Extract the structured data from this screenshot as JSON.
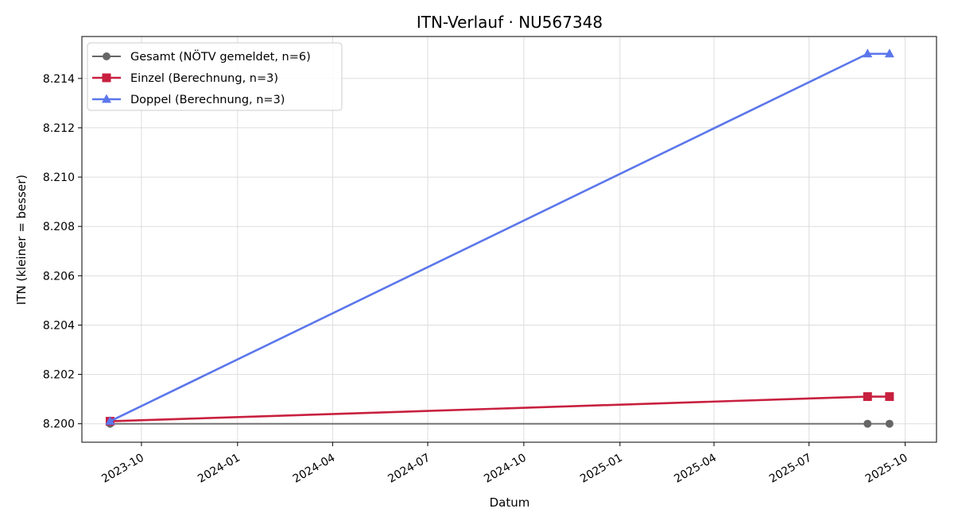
{
  "chart_data": {
    "type": "line",
    "title": "ITN-Verlauf · NU567348",
    "xlabel": "Datum",
    "ylabel": "ITN  (kleiner = besser)",
    "x_ticks": [
      "2023-10",
      "2024-01",
      "2024-04",
      "2024-07",
      "2024-10",
      "2025-01",
      "2025-04",
      "2025-07",
      "2025-10"
    ],
    "y_ticks": [
      "8.200",
      "8.202",
      "8.204",
      "8.206",
      "8.208",
      "8.210",
      "8.212",
      "8.214"
    ],
    "xlim": [
      "2023-08-05",
      "2025-10-31"
    ],
    "ylim": [
      8.19925,
      8.2157
    ],
    "grid": true,
    "legend_position": "upper left",
    "series": [
      {
        "name": "Gesamt (NÖTV gemeldet, n=6)",
        "color": "#666666",
        "marker": "circle",
        "points": [
          {
            "x": "2023-09-01",
            "y": 8.2
          },
          {
            "x": "2025-08-26",
            "y": 8.2
          },
          {
            "x": "2025-09-16",
            "y": 8.2
          }
        ]
      },
      {
        "name": "Einzel (Berechnung, n=3)",
        "color": "#c8203f",
        "marker": "square",
        "points": [
          {
            "x": "2023-09-01",
            "y": 8.2001
          },
          {
            "x": "2025-08-26",
            "y": 8.2011
          },
          {
            "x": "2025-09-16",
            "y": 8.2011
          }
        ]
      },
      {
        "name": "Doppel (Berechnung, n=3)",
        "color": "#5b76eb",
        "marker": "triangle",
        "points": [
          {
            "x": "2023-09-01",
            "y": 8.2001
          },
          {
            "x": "2025-08-26",
            "y": 8.215
          },
          {
            "x": "2025-09-16",
            "y": 8.215
          }
        ]
      }
    ]
  }
}
